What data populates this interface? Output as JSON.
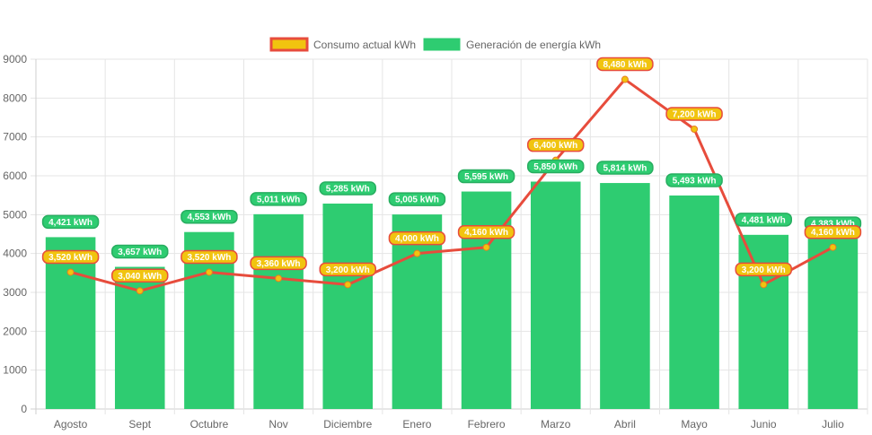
{
  "chart_data": {
    "type": "bar",
    "title": "",
    "xlabel": "",
    "ylabel": "",
    "ylim": [
      0,
      9000
    ],
    "y_ticks": [
      "0",
      "1000",
      "2000",
      "3000",
      "4000",
      "5000",
      "6000",
      "7000",
      "8000",
      "9000"
    ],
    "grid": true,
    "legend_position": "top-center",
    "categories": [
      "Agosto",
      "Sept",
      "Octubre",
      "Nov",
      "Diciembre",
      "Enero",
      "Febrero",
      "Marzo",
      "Abril",
      "Mayo",
      "Junio",
      "Julio"
    ],
    "series": [
      {
        "name": "Consumo actual kWh",
        "type": "line",
        "color": "#e74c3c",
        "point_color": "#f1c40f",
        "values": [
          3520,
          3040,
          3520,
          3360,
          3200,
          4000,
          4160,
          6400,
          8480,
          7200,
          3200,
          4160
        ],
        "labels": [
          "3,520 kWh",
          "3,040 kWh",
          "3,520 kWh",
          "3,360 kWh",
          "3,200 kWh",
          "4,000 kWh",
          "4,160 kWh",
          "6,400 kWh",
          "8,480 kWh",
          "7,200 kWh",
          "3,200 kWh",
          "4,160 kWh"
        ]
      },
      {
        "name": "Generación de energía kWh",
        "type": "bar",
        "color": "#2ecc71",
        "values": [
          4421,
          3657,
          4553,
          5011,
          5285,
          5005,
          5595,
          5850,
          5814,
          5493,
          4481,
          4383
        ],
        "labels": [
          "4,421 kWh",
          "3,657 kWh",
          "4,553 kWh",
          "5,011 kWh",
          "5,285 kWh",
          "5,005 kWh",
          "5,595 kWh",
          "5,850 kWh",
          "5,814 kWh",
          "5,493 kWh",
          "4,481 kWh",
          "4,383 kWh"
        ]
      }
    ]
  },
  "legend": [
    {
      "label": "Consumo actual kWh",
      "fill": "#f1c40f",
      "border": "#e74c3c"
    },
    {
      "label": "Generación de energía kWh",
      "fill": "#2ecc71",
      "border": "#2ecc71"
    }
  ]
}
